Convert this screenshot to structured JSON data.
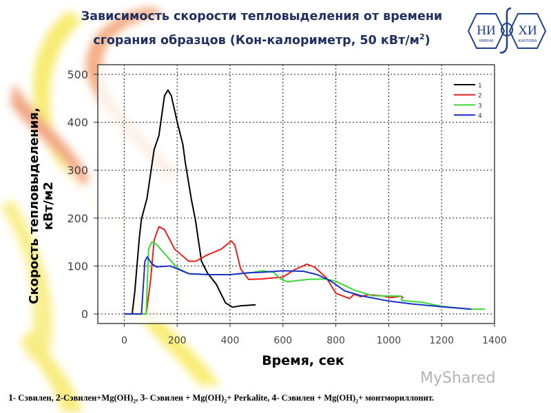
{
  "slide": {
    "title_line1": "Зависимость скорости тепловыделения от времени",
    "title_line2_pre": "сгорания образцов (Кон-калориметр, 50 кВт/м",
    "title_sup": "2",
    "title_line2_post": ")",
    "logo": {
      "left": "НИ",
      "right": "ХИ",
      "sub_left": "ИМЕНИ",
      "sub_right": "КАРПОВА",
      "colors": [
        "#1d3f91"
      ]
    },
    "watermark": "MyShared",
    "caption": {
      "p1_num": "1",
      "p1": "- Сэвилен, ",
      "p2_num": "2",
      "p2": "-Сэвилен+Mg(OH)",
      "p2_sub": "2",
      "p2_end": ", ",
      "p3_num": "3",
      "p3": "- Сэвилен + Mg(OH)",
      "p3_sub": "2",
      "p3_end": "+ Perkalite, ",
      "p4_num": "4",
      "p4": "- Сэвилен + Mg(OH)",
      "p4_sub": "2",
      "p4_end": "+ монтмориллонит."
    }
  },
  "chart_data": {
    "type": "line",
    "title": "",
    "xlabel": "Время, сек",
    "ylabel": "Скорость тепловыделения, кВт/м2",
    "xlim": [
      -100,
      1400
    ],
    "ylim": [
      -20,
      520
    ],
    "xticks": [
      0,
      200,
      400,
      600,
      800,
      1000,
      1200,
      1400
    ],
    "yticks": [
      0,
      100,
      200,
      300,
      400,
      500
    ],
    "grid": true,
    "legend_position": "top-right",
    "series": [
      {
        "name": "1",
        "color": "#000000",
        "points": [
          [
            0,
            0
          ],
          [
            30,
            0
          ],
          [
            40,
            48
          ],
          [
            57,
            159
          ],
          [
            65,
            198
          ],
          [
            86,
            241
          ],
          [
            113,
            343
          ],
          [
            131,
            372
          ],
          [
            152,
            455
          ],
          [
            165,
            467
          ],
          [
            178,
            455
          ],
          [
            200,
            401
          ],
          [
            222,
            353
          ],
          [
            230,
            319
          ],
          [
            253,
            241
          ],
          [
            270,
            193
          ],
          [
            292,
            110
          ],
          [
            314,
            86
          ],
          [
            348,
            62
          ],
          [
            383,
            23
          ],
          [
            410,
            14
          ],
          [
            440,
            17
          ],
          [
            470,
            18
          ],
          [
            497,
            19
          ]
        ]
      },
      {
        "name": "2",
        "color": "#e8201e",
        "points": [
          [
            0,
            0
          ],
          [
            83,
            0
          ],
          [
            100,
            72
          ],
          [
            113,
            154
          ],
          [
            131,
            182
          ],
          [
            152,
            176
          ],
          [
            191,
            135
          ],
          [
            244,
            110
          ],
          [
            270,
            110
          ],
          [
            314,
            123
          ],
          [
            366,
            135
          ],
          [
            405,
            152
          ],
          [
            418,
            144
          ],
          [
            440,
            94
          ],
          [
            470,
            72
          ],
          [
            522,
            73
          ],
          [
            600,
            77
          ],
          [
            643,
            92
          ],
          [
            691,
            104
          ],
          [
            721,
            97
          ],
          [
            765,
            75
          ],
          [
            800,
            43
          ],
          [
            852,
            32
          ],
          [
            869,
            41
          ],
          [
            895,
            36
          ],
          [
            921,
            40
          ],
          [
            973,
            38
          ],
          [
            1008,
            34
          ],
          [
            1047,
            37
          ],
          [
            1055,
            33
          ]
        ]
      },
      {
        "name": "3",
        "color": "#3ad83a",
        "points": [
          [
            0,
            0
          ],
          [
            83,
            0
          ],
          [
            92,
            135
          ],
          [
            104,
            150
          ],
          [
            122,
            145
          ],
          [
            157,
            123
          ],
          [
            200,
            96
          ],
          [
            244,
            84
          ],
          [
            320,
            82
          ],
          [
            400,
            82
          ],
          [
            480,
            86
          ],
          [
            522,
            90
          ],
          [
            565,
            87
          ],
          [
            591,
            73
          ],
          [
            617,
            67
          ],
          [
            695,
            72
          ],
          [
            765,
            73
          ],
          [
            800,
            68
          ],
          [
            869,
            50
          ],
          [
            938,
            38
          ],
          [
            1047,
            37
          ],
          [
            1050,
            28
          ],
          [
            1129,
            24
          ],
          [
            1198,
            16
          ],
          [
            1303,
            10
          ],
          [
            1364,
            10
          ]
        ]
      },
      {
        "name": "4",
        "color": "#1a2fc8",
        "points": [
          [
            0,
            0
          ],
          [
            65,
            0
          ],
          [
            78,
            110
          ],
          [
            87,
            119
          ],
          [
            104,
            105
          ],
          [
            122,
            98
          ],
          [
            174,
            100
          ],
          [
            244,
            84
          ],
          [
            320,
            82
          ],
          [
            400,
            82
          ],
          [
            470,
            86
          ],
          [
            522,
            87
          ],
          [
            600,
            90
          ],
          [
            678,
            89
          ],
          [
            730,
            82
          ],
          [
            782,
            68
          ],
          [
            834,
            48
          ],
          [
            895,
            38
          ],
          [
            999,
            27
          ],
          [
            1086,
            21
          ],
          [
            1198,
            15
          ],
          [
            1312,
            10
          ]
        ]
      }
    ]
  }
}
